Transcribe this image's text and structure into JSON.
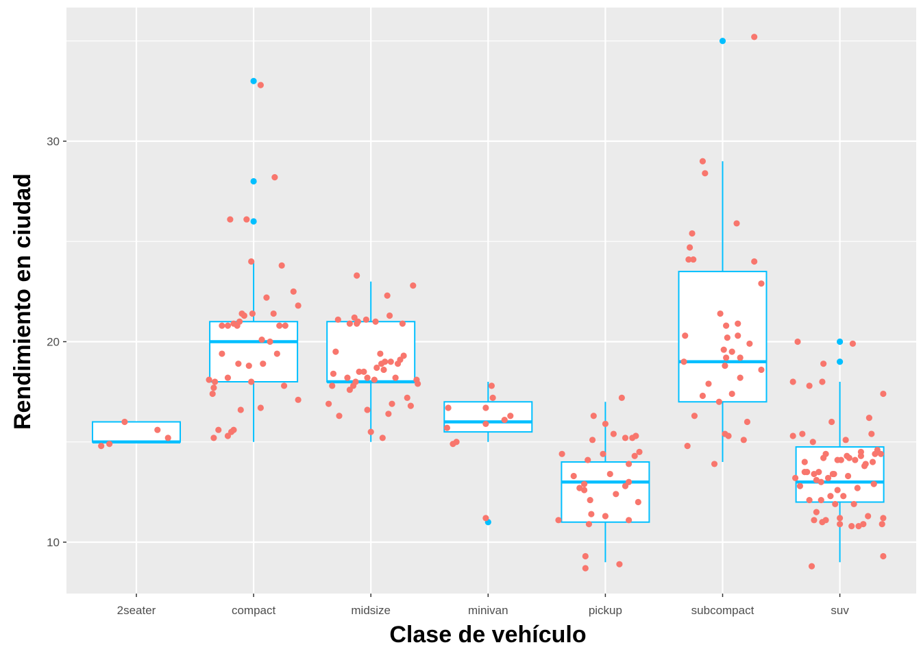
{
  "chart_data": {
    "type": "box",
    "xlabel": "Clase de vehículo",
    "ylabel": "Rendimiento en ciudad",
    "categories": [
      "2seater",
      "compact",
      "midsize",
      "minivan",
      "pickup",
      "subcompact",
      "suv"
    ],
    "yticks": [
      10,
      20,
      30
    ],
    "ylim": [
      7.4,
      36.6
    ],
    "grid": true,
    "colors": {
      "panel": "#EBEBEB",
      "grid": "#FFFFFF",
      "box": "#00BFFF",
      "points": "#F8766D",
      "outliers": "#00BFFF"
    },
    "boxes": [
      {
        "category": "2seater",
        "min": 15,
        "q1": 15,
        "median": 15,
        "q3": 16,
        "max": 16,
        "outliers": []
      },
      {
        "category": "compact",
        "min": 15,
        "q1": 18,
        "median": 20,
        "q3": 21,
        "max": 24,
        "outliers": [
          33,
          28,
          26
        ]
      },
      {
        "category": "midsize",
        "min": 15,
        "q1": 18,
        "median": 18,
        "q3": 21,
        "max": 23,
        "outliers": []
      },
      {
        "category": "minivan",
        "min": 15,
        "q1": 15.5,
        "median": 16,
        "q3": 17,
        "max": 18,
        "outliers": [
          11
        ]
      },
      {
        "category": "pickup",
        "min": 9,
        "q1": 11,
        "median": 13,
        "q3": 14,
        "max": 17,
        "outliers": []
      },
      {
        "category": "subcompact",
        "min": 14,
        "q1": 17,
        "median": 19,
        "q3": 23.5,
        "max": 29,
        "outliers": [
          35
        ]
      },
      {
        "category": "suv",
        "min": 9,
        "q1": 12,
        "median": 13,
        "q3": 14.75,
        "max": 18,
        "outliers": [
          20,
          19
        ]
      }
    ],
    "points": [
      {
        "category": "2seater",
        "values": [
          [
            -0.3,
            14.8
          ],
          [
            -0.23,
            14.9
          ],
          [
            -0.1,
            16.0
          ],
          [
            0.18,
            15.6
          ],
          [
            0.27,
            15.2
          ]
        ]
      },
      {
        "category": "compact",
        "values": [
          [
            -0.38,
            18.1
          ],
          [
            -0.35,
            17.4
          ],
          [
            -0.34,
            17.7
          ],
          [
            -0.34,
            15.2
          ],
          [
            -0.33,
            18.0
          ],
          [
            -0.3,
            15.6
          ],
          [
            -0.27,
            19.4
          ],
          [
            -0.27,
            20.8
          ],
          [
            -0.22,
            20.8
          ],
          [
            -0.22,
            15.3
          ],
          [
            -0.22,
            18.2
          ],
          [
            -0.2,
            26.1
          ],
          [
            -0.19,
            15.5
          ],
          [
            -0.17,
            15.6
          ],
          [
            -0.17,
            20.9
          ],
          [
            -0.14,
            20.8
          ],
          [
            -0.13,
            18.9
          ],
          [
            -0.12,
            21.0
          ],
          [
            -0.11,
            16.6
          ],
          [
            -0.1,
            21.4
          ],
          [
            -0.08,
            21.3
          ],
          [
            -0.06,
            26.1
          ],
          [
            -0.04,
            18.8
          ],
          [
            -0.02,
            18.0
          ],
          [
            -0.02,
            24.0
          ],
          [
            -0.01,
            21.4
          ],
          [
            0.06,
            16.7
          ],
          [
            0.07,
            20.1
          ],
          [
            0.08,
            18.9
          ],
          [
            0.11,
            22.2
          ],
          [
            0.14,
            20.0
          ],
          [
            0.17,
            21.4
          ],
          [
            0.18,
            28.2
          ],
          [
            0.22,
            20.8
          ],
          [
            0.24,
            23.8
          ],
          [
            0.26,
            17.8
          ],
          [
            0.27,
            20.8
          ],
          [
            0.34,
            22.5
          ],
          [
            0.38,
            17.1
          ],
          [
            0.38,
            21.8
          ],
          [
            0.06,
            32.8
          ],
          [
            0.2,
            19.4
          ]
        ]
      },
      {
        "category": "midsize",
        "values": [
          [
            -0.36,
            16.9
          ],
          [
            -0.33,
            17.8
          ],
          [
            -0.32,
            18.4
          ],
          [
            -0.3,
            19.5
          ],
          [
            -0.28,
            21.1
          ],
          [
            -0.27,
            16.3
          ],
          [
            -0.2,
            18.2
          ],
          [
            -0.18,
            20.9
          ],
          [
            -0.18,
            17.6
          ],
          [
            -0.15,
            17.8
          ],
          [
            -0.14,
            21.2
          ],
          [
            -0.13,
            18.0
          ],
          [
            -0.12,
            20.9
          ],
          [
            -0.12,
            23.3
          ],
          [
            -0.11,
            21.0
          ],
          [
            -0.1,
            18.5
          ],
          [
            -0.06,
            18.5
          ],
          [
            -0.04,
            21.1
          ],
          [
            -0.03,
            18.2
          ],
          [
            -0.03,
            16.6
          ],
          [
            0.0,
            15.5
          ],
          [
            0.03,
            18.1
          ],
          [
            0.04,
            21.0
          ],
          [
            0.05,
            18.7
          ],
          [
            0.08,
            19.4
          ],
          [
            0.09,
            18.9
          ],
          [
            0.1,
            15.2
          ],
          [
            0.11,
            18.6
          ],
          [
            0.12,
            19.0
          ],
          [
            0.14,
            22.3
          ],
          [
            0.15,
            16.4
          ],
          [
            0.16,
            21.3
          ],
          [
            0.17,
            19.0
          ],
          [
            0.18,
            16.9
          ],
          [
            0.21,
            18.2
          ],
          [
            0.23,
            18.9
          ],
          [
            0.25,
            19.1
          ],
          [
            0.27,
            20.9
          ],
          [
            0.28,
            19.3
          ],
          [
            0.31,
            17.2
          ],
          [
            0.34,
            16.8
          ],
          [
            0.36,
            22.8
          ],
          [
            0.39,
            18.1
          ],
          [
            0.4,
            17.9
          ]
        ]
      },
      {
        "category": "minivan",
        "values": [
          [
            -0.35,
            15.7
          ],
          [
            -0.34,
            16.7
          ],
          [
            -0.3,
            14.9
          ],
          [
            -0.27,
            15.0
          ],
          [
            -0.02,
            11.2
          ],
          [
            -0.02,
            16.7
          ],
          [
            -0.02,
            15.9
          ],
          [
            0.03,
            17.8
          ],
          [
            0.04,
            17.2
          ],
          [
            0.14,
            16.1
          ],
          [
            0.19,
            16.3
          ]
        ]
      },
      {
        "category": "pickup",
        "values": [
          [
            -0.4,
            11.1
          ],
          [
            -0.37,
            14.4
          ],
          [
            -0.27,
            13.3
          ],
          [
            -0.22,
            12.7
          ],
          [
            -0.18,
            12.9
          ],
          [
            -0.18,
            12.6
          ],
          [
            -0.17,
            8.7
          ],
          [
            -0.17,
            9.3
          ],
          [
            -0.15,
            14.1
          ],
          [
            -0.14,
            10.9
          ],
          [
            -0.13,
            12.1
          ],
          [
            -0.12,
            11.4
          ],
          [
            -0.11,
            15.1
          ],
          [
            -0.1,
            16.3
          ],
          [
            -0.02,
            14.4
          ],
          [
            0.0,
            11.3
          ],
          [
            0.0,
            15.9
          ],
          [
            0.04,
            13.4
          ],
          [
            0.07,
            15.4
          ],
          [
            0.12,
            8.9
          ],
          [
            0.14,
            17.2
          ],
          [
            0.17,
            15.2
          ],
          [
            0.17,
            12.8
          ],
          [
            0.2,
            13.0
          ],
          [
            0.2,
            11.1
          ],
          [
            0.2,
            13.9
          ],
          [
            0.23,
            15.2
          ],
          [
            0.25,
            14.3
          ],
          [
            0.26,
            15.3
          ],
          [
            0.28,
            12.0
          ],
          [
            0.29,
            14.5
          ],
          [
            0.09,
            12.4
          ]
        ]
      },
      {
        "category": "subcompact",
        "values": [
          [
            -0.33,
            19.0
          ],
          [
            -0.32,
            20.3
          ],
          [
            -0.3,
            14.8
          ],
          [
            -0.29,
            24.1
          ],
          [
            -0.28,
            24.7
          ],
          [
            -0.26,
            25.4
          ],
          [
            -0.25,
            24.1
          ],
          [
            -0.24,
            16.3
          ],
          [
            -0.17,
            17.3
          ],
          [
            -0.17,
            29.0
          ],
          [
            -0.15,
            28.4
          ],
          [
            -0.12,
            17.9
          ],
          [
            -0.07,
            13.9
          ],
          [
            -0.03,
            17.0
          ],
          [
            -0.02,
            21.4
          ],
          [
            0.02,
            18.8
          ],
          [
            0.02,
            15.4
          ],
          [
            0.03,
            19.2
          ],
          [
            0.03,
            20.8
          ],
          [
            0.04,
            20.2
          ],
          [
            0.05,
            15.3
          ],
          [
            0.08,
            19.5
          ],
          [
            0.08,
            17.4
          ],
          [
            0.12,
            25.9
          ],
          [
            0.13,
            20.3
          ],
          [
            0.13,
            20.9
          ],
          [
            0.15,
            19.2
          ],
          [
            0.15,
            18.2
          ],
          [
            0.18,
            15.1
          ],
          [
            0.21,
            16.0
          ],
          [
            0.23,
            19.9
          ],
          [
            0.27,
            35.2
          ],
          [
            0.27,
            24.0
          ],
          [
            0.33,
            22.9
          ],
          [
            0.33,
            18.6
          ],
          [
            0.01,
            19.6
          ]
        ]
      },
      {
        "category": "suv",
        "values": [
          [
            -0.4,
            15.3
          ],
          [
            -0.4,
            18.0
          ],
          [
            -0.38,
            13.2
          ],
          [
            -0.36,
            20.0
          ],
          [
            -0.34,
            12.8
          ],
          [
            -0.32,
            15.4
          ],
          [
            -0.3,
            14.0
          ],
          [
            -0.3,
            13.5
          ],
          [
            -0.28,
            13.5
          ],
          [
            -0.26,
            17.8
          ],
          [
            -0.26,
            12.1
          ],
          [
            -0.24,
            8.8
          ],
          [
            -0.23,
            15.0
          ],
          [
            -0.22,
            13.4
          ],
          [
            -0.22,
            11.1
          ],
          [
            -0.2,
            11.5
          ],
          [
            -0.2,
            13.1
          ],
          [
            -0.18,
            13.5
          ],
          [
            -0.16,
            13.0
          ],
          [
            -0.16,
            12.1
          ],
          [
            -0.15,
            18.0
          ],
          [
            -0.15,
            11.0
          ],
          [
            -0.14,
            14.2
          ],
          [
            -0.14,
            18.9
          ],
          [
            -0.12,
            11.1
          ],
          [
            -0.12,
            14.4
          ],
          [
            -0.1,
            13.2
          ],
          [
            -0.07,
            16.0
          ],
          [
            -0.06,
            13.4
          ],
          [
            -0.05,
            13.4
          ],
          [
            -0.04,
            11.9
          ],
          [
            -0.02,
            14.1
          ],
          [
            -0.02,
            12.6
          ],
          [
            0.0,
            11.2
          ],
          [
            0.0,
            10.9
          ],
          [
            0.01,
            14.1
          ],
          [
            0.03,
            12.3
          ],
          [
            0.05,
            15.1
          ],
          [
            0.06,
            14.3
          ],
          [
            0.07,
            13.3
          ],
          [
            0.08,
            14.2
          ],
          [
            0.1,
            10.8
          ],
          [
            0.11,
            19.9
          ],
          [
            0.12,
            11.9
          ],
          [
            0.13,
            14.1
          ],
          [
            0.15,
            12.7
          ],
          [
            0.16,
            10.8
          ],
          [
            0.18,
            14.3
          ],
          [
            0.2,
            10.9
          ],
          [
            0.21,
            13.8
          ],
          [
            0.22,
            13.9
          ],
          [
            0.24,
            11.3
          ],
          [
            0.25,
            16.2
          ],
          [
            0.27,
            15.4
          ],
          [
            0.28,
            14.0
          ],
          [
            0.29,
            12.9
          ],
          [
            0.3,
            14.4
          ],
          [
            0.32,
            14.6
          ],
          [
            0.35,
            14.4
          ],
          [
            0.36,
            10.9
          ],
          [
            0.37,
            17.4
          ],
          [
            0.37,
            11.2
          ],
          [
            0.37,
            9.3
          ],
          [
            0.18,
            14.5
          ],
          [
            -0.08,
            12.3
          ]
        ]
      }
    ]
  }
}
